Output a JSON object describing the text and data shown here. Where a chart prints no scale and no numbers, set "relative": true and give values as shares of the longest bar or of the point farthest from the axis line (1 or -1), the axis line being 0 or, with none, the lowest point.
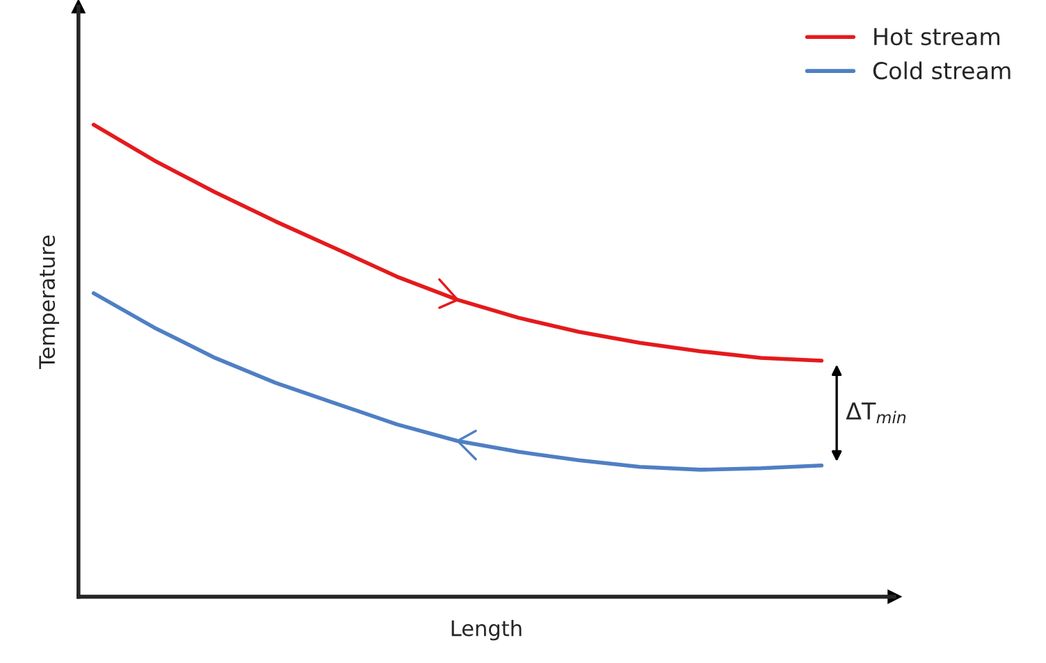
{
  "chart_data": {
    "type": "line",
    "relative": true,
    "xlabel": "Length",
    "ylabel": "Temperature",
    "categories": [
      null,
      null,
      null,
      null,
      null,
      null,
      null,
      null,
      null,
      null,
      null,
      null,
      null
    ],
    "series": [
      {
        "name": "Hot stream",
        "color": "#e41a1c",
        "values": [
          1,
          0.924,
          0.857,
          0.795,
          0.737,
          0.678,
          0.629,
          0.591,
          0.561,
          0.538,
          0.52,
          0.506,
          0.5
        ]
      },
      {
        "name": "Cold stream",
        "color": "#4f7fc4",
        "values": [
          0.643,
          0.57,
          0.506,
          0.453,
          0.409,
          0.365,
          0.33,
          0.307,
          0.289,
          0.275,
          0.269,
          0.272,
          0.278
        ]
      }
    ],
    "annotations": [
      "ΔT$_{min}$"
    ],
    "legend": "top right",
    "marker": "none",
    "line_style": "solid"
  }
}
